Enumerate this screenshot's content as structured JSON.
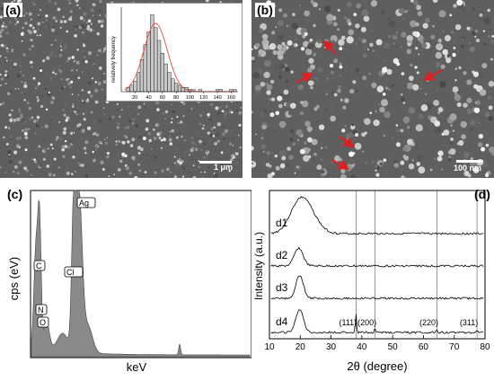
{
  "panels": {
    "a": {
      "label": "(a)",
      "scale_label": "1 μm"
    },
    "b": {
      "label": "(b)",
      "scale_label": "100 nm"
    },
    "c": {
      "label": "(c)"
    },
    "d": {
      "label": "(d)"
    }
  },
  "colors": {
    "histogram_bar": "#c8c8c8",
    "fit_curve": "#e74c3c",
    "arrow": "#e02020",
    "eds_fill": "#8a8a8a"
  },
  "chart_data": [
    {
      "panel": "a-inset",
      "type": "bar",
      "title": "",
      "xlabel": "",
      "ylabel": "relatively frequency",
      "x_ticks": [
        "20",
        "40",
        "60",
        "80",
        "100",
        "120",
        "140",
        "160"
      ],
      "xlim": [
        0,
        170
      ],
      "bins": [
        10,
        15,
        20,
        25,
        30,
        35,
        40,
        45,
        50,
        55,
        60,
        65,
        70,
        75,
        80,
        85,
        90,
        95,
        100,
        105,
        110,
        115,
        120,
        125,
        130,
        135,
        140,
        145,
        150,
        155,
        160,
        165
      ],
      "values": [
        2,
        3,
        5,
        9,
        15,
        22,
        28,
        36,
        30,
        24,
        18,
        13,
        9,
        6,
        4,
        3,
        2,
        2,
        1,
        1,
        0,
        1,
        0,
        0,
        0,
        0,
        1,
        1,
        0,
        0,
        1,
        1
      ],
      "fit": "gaussian"
    },
    {
      "panel": "c",
      "type": "area",
      "title": "",
      "xlabel": "keV",
      "ylabel": "cps (eV)",
      "peak_labels": [
        "C",
        "N",
        "O",
        "Cl",
        "Ag"
      ]
    },
    {
      "panel": "d",
      "type": "line",
      "title": "",
      "xlabel": "2θ (degree)",
      "ylabel": "Intensity (a.u.)",
      "xlim": [
        10,
        80
      ],
      "x_ticks": [
        "10",
        "20",
        "30",
        "40",
        "50",
        "60",
        "70",
        "80"
      ],
      "series": [
        {
          "name": "d1"
        },
        {
          "name": "d2"
        },
        {
          "name": "d3"
        },
        {
          "name": "d4"
        }
      ],
      "reference_lines": [
        {
          "x": 38.1,
          "label": "(111)"
        },
        {
          "x": 44.3,
          "label": "(200)"
        },
        {
          "x": 64.4,
          "label": "(220)"
        },
        {
          "x": 77.4,
          "label": "(311)"
        }
      ]
    }
  ]
}
